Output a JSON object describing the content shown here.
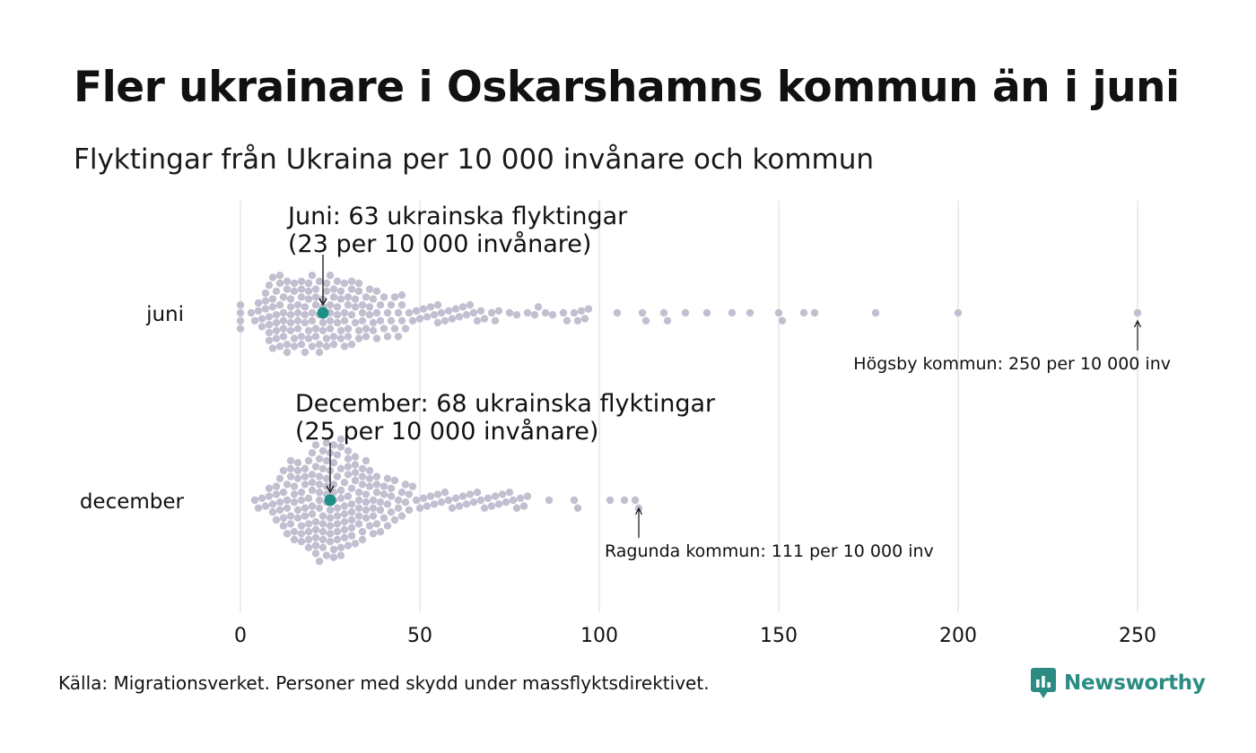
{
  "title": "Fler ukrainare i Oskarshamns kommun än i juni",
  "subtitle": "Flyktingar från Ukraina per 10 000 invånare och kommun",
  "source": "Källa: Migrationsverket. Personer med skydd under massflyktsdirektivet.",
  "logo": {
    "name": "Newsworthy",
    "icon": "bar-chart-speech-bubble-icon"
  },
  "colors": {
    "dot": "#c1bfd0",
    "highlight": "#1e8f84",
    "grid": "#d9d9d9",
    "brand": "#2a8c83"
  },
  "chart_data": {
    "type": "scatter",
    "subtype": "beeswarm",
    "xlim": [
      0,
      250
    ],
    "x_ticks": [
      "0",
      "50",
      "100",
      "150",
      "200",
      "250"
    ],
    "x_tick_values": [
      0,
      50,
      100,
      150,
      200,
      250
    ],
    "grid": true,
    "series": [
      {
        "name": "juni",
        "values": [
          0,
          0,
          0,
          0,
          3,
          4,
          5,
          5,
          6,
          6,
          7,
          7,
          7,
          8,
          8,
          8,
          8,
          8,
          9,
          9,
          9,
          9,
          10,
          10,
          10,
          10,
          10,
          11,
          11,
          11,
          11,
          12,
          12,
          12,
          12,
          12,
          13,
          13,
          13,
          13,
          14,
          14,
          14,
          14,
          14,
          15,
          15,
          15,
          15,
          16,
          16,
          16,
          16,
          17,
          17,
          17,
          17,
          17,
          18,
          18,
          18,
          18,
          19,
          19,
          19,
          19,
          19,
          20,
          20,
          20,
          20,
          21,
          21,
          21,
          21,
          21,
          22,
          22,
          22,
          22,
          23,
          23,
          23,
          23,
          24,
          24,
          24,
          24,
          25,
          25,
          25,
          25,
          25,
          26,
          26,
          26,
          26,
          27,
          27,
          27,
          27,
          28,
          28,
          28,
          28,
          29,
          29,
          29,
          29,
          30,
          30,
          30,
          30,
          31,
          31,
          31,
          31,
          32,
          32,
          32,
          33,
          33,
          33,
          33,
          34,
          34,
          34,
          35,
          35,
          35,
          36,
          36,
          36,
          37,
          37,
          37,
          38,
          38,
          38,
          39,
          39,
          40,
          40,
          41,
          41,
          42,
          42,
          43,
          43,
          44,
          44,
          45,
          45,
          45,
          46,
          47,
          48,
          49,
          50,
          51,
          52,
          53,
          54,
          55,
          55,
          56,
          57,
          58,
          59,
          60,
          61,
          62,
          63,
          64,
          65,
          66,
          67,
          68,
          70,
          71,
          72,
          75,
          77,
          80,
          82,
          83,
          85,
          87,
          90,
          91,
          93,
          94,
          95,
          96,
          97,
          105,
          112,
          113,
          118,
          119,
          124,
          130,
          137,
          142,
          150,
          151,
          157,
          160,
          177,
          200,
          250
        ],
        "highlight": {
          "value": 23,
          "label_line1": "Juni: 63 ukrainska flyktingar",
          "label_line2": "(23 per 10 000 invånare)"
        },
        "extreme": {
          "value": 250,
          "label": "Högsby kommun: 250 per 10 000 inv"
        }
      },
      {
        "name": "december",
        "values": [
          4,
          5,
          6,
          7,
          8,
          8,
          9,
          9,
          10,
          10,
          10,
          11,
          11,
          11,
          12,
          12,
          12,
          12,
          13,
          13,
          13,
          13,
          14,
          14,
          14,
          14,
          14,
          15,
          15,
          15,
          15,
          15,
          16,
          16,
          16,
          16,
          16,
          17,
          17,
          17,
          17,
          17,
          18,
          18,
          18,
          18,
          18,
          19,
          19,
          19,
          19,
          19,
          19,
          20,
          20,
          20,
          20,
          20,
          20,
          21,
          21,
          21,
          21,
          21,
          21,
          21,
          22,
          22,
          22,
          22,
          22,
          22,
          22,
          23,
          23,
          23,
          23,
          23,
          23,
          23,
          24,
          24,
          24,
          24,
          24,
          24,
          24,
          25,
          25,
          25,
          25,
          25,
          25,
          25,
          26,
          26,
          26,
          26,
          26,
          26,
          26,
          27,
          27,
          27,
          27,
          27,
          27,
          27,
          28,
          28,
          28,
          28,
          28,
          28,
          28,
          29,
          29,
          29,
          29,
          29,
          29,
          30,
          30,
          30,
          30,
          30,
          30,
          31,
          31,
          31,
          31,
          31,
          31,
          32,
          32,
          32,
          32,
          32,
          33,
          33,
          33,
          33,
          33,
          34,
          34,
          34,
          34,
          34,
          35,
          35,
          35,
          35,
          35,
          36,
          36,
          36,
          36,
          37,
          37,
          37,
          37,
          38,
          38,
          38,
          38,
          39,
          39,
          39,
          40,
          40,
          40,
          41,
          41,
          41,
          42,
          42,
          42,
          43,
          43,
          44,
          44,
          45,
          45,
          46,
          46,
          47,
          47,
          48,
          49,
          50,
          51,
          52,
          53,
          54,
          55,
          56,
          57,
          58,
          59,
          60,
          61,
          62,
          63,
          64,
          65,
          66,
          67,
          68,
          69,
          70,
          71,
          72,
          73,
          74,
          75,
          76,
          77,
          78,
          79,
          80,
          86,
          93,
          94,
          103,
          107,
          110,
          111
        ],
        "highlight": {
          "value": 25,
          "label_line1": "December: 68 ukrainska flyktingar",
          "label_line2": "(25 per 10 000 invånare)"
        },
        "extreme": {
          "value": 111,
          "label": "Ragunda kommun: 111 per 10 000 inv"
        }
      }
    ]
  }
}
